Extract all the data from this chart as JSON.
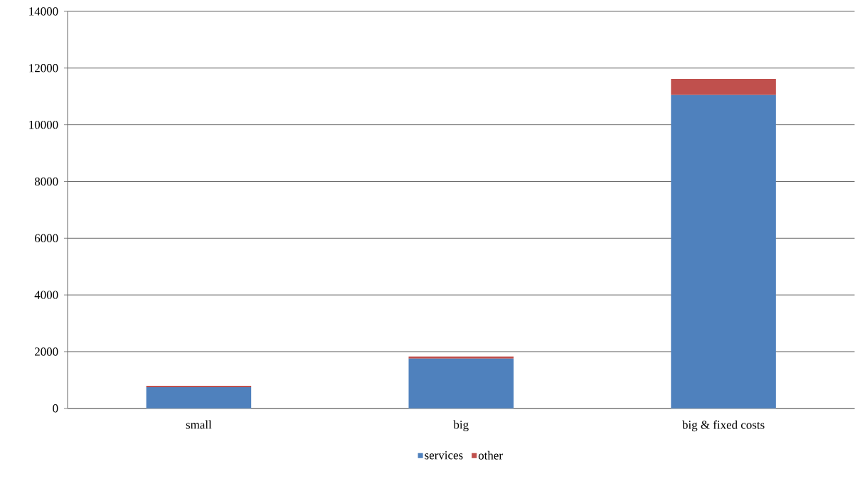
{
  "chart_data": {
    "type": "bar",
    "stacked": true,
    "categories": [
      "small",
      "big",
      "big & fixed costs"
    ],
    "series": [
      {
        "name": "services",
        "color": "#4f81bd",
        "values": [
          745,
          1755,
          11050
        ]
      },
      {
        "name": "other",
        "color": "#c0504d",
        "values": [
          50,
          75,
          570
        ]
      }
    ],
    "ylim": [
      0,
      14000
    ],
    "yticks": [
      0,
      2000,
      4000,
      6000,
      8000,
      10000,
      12000,
      14000
    ],
    "grid": "y",
    "legend": "bottom"
  }
}
